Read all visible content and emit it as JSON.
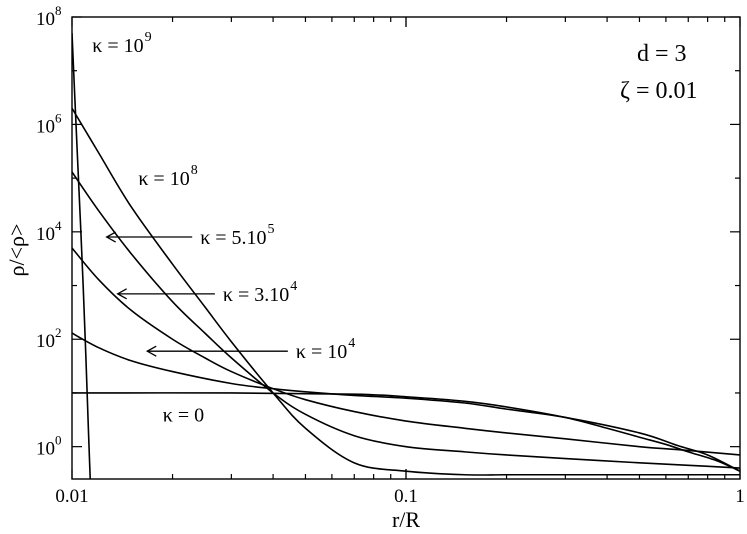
{
  "chart_data": {
    "type": "line",
    "title": "",
    "xlabel": "r/R",
    "ylabel": "ρ/<ρ>",
    "xscale": "log",
    "yscale": "log",
    "xlim": [
      0.01,
      1
    ],
    "ylim": [
      0.25,
      100000000
    ],
    "grid": false,
    "xticks": [
      {
        "value": 0.01,
        "label": "0.01"
      },
      {
        "value": 0.1,
        "label": "0.1"
      },
      {
        "value": 1,
        "label": "1"
      }
    ],
    "yticks": [
      {
        "value": 1,
        "base": "10",
        "exp": "0"
      },
      {
        "value": 100,
        "base": "10",
        "exp": "2"
      },
      {
        "value": 10000,
        "base": "10",
        "exp": "4"
      },
      {
        "value": 1000000,
        "base": "10",
        "exp": "6"
      },
      {
        "value": 100000000,
        "base": "10",
        "exp": "8"
      }
    ],
    "params": [
      {
        "text": "d = 3"
      },
      {
        "text": "ζ = 0.01"
      }
    ],
    "series": [
      {
        "label_base": "κ = 10",
        "label_exp": "9",
        "arrow": false,
        "label_anchor": [
          0.0115,
          30000000
        ],
        "x": [
          0.01,
          0.0102,
          0.0104,
          0.0106,
          0.0108,
          0.011,
          0.0112,
          0.0114
        ],
        "y": [
          50000000,
          3000000,
          200000,
          15000,
          1000,
          50,
          2,
          0.1
        ]
      },
      {
        "label_base": "κ = 10",
        "label_exp": "8",
        "arrow": false,
        "label_anchor": [
          0.0158,
          100000
        ],
        "x": [
          0.01,
          0.012,
          0.015,
          0.02,
          0.025,
          0.03,
          0.04,
          0.05,
          0.07,
          0.1,
          0.15,
          0.2,
          0.3,
          0.5,
          0.7,
          1
        ],
        "y": [
          2000000,
          300000,
          30000,
          2500,
          400,
          90,
          10,
          2.2,
          0.5,
          0.35,
          0.3,
          0.3,
          0.3,
          0.3,
          0.3,
          0.3
        ]
      },
      {
        "label_base": "κ = 5.10",
        "label_exp": "5",
        "arrow": true,
        "label_anchor": [
          0.0242,
          8000
        ],
        "arrow_to": [
          0.0127,
          8000
        ],
        "x": [
          0.01,
          0.012,
          0.015,
          0.02,
          0.025,
          0.03,
          0.04,
          0.05,
          0.07,
          0.1,
          0.15,
          0.2,
          0.3,
          0.5,
          0.7,
          1
        ],
        "y": [
          130000,
          25000,
          4000,
          500,
          130,
          45,
          10,
          4,
          1.6,
          1,
          0.8,
          0.7,
          0.6,
          0.5,
          0.45,
          0.4
        ]
      },
      {
        "label_base": "κ = 3.10",
        "label_exp": "4",
        "arrow": true,
        "label_anchor": [
          0.0283,
          700
        ],
        "arrow_to": [
          0.0137,
          700
        ],
        "x": [
          0.01,
          0.012,
          0.015,
          0.02,
          0.025,
          0.03,
          0.04,
          0.05,
          0.07,
          0.1,
          0.15,
          0.2,
          0.3,
          0.5,
          0.7,
          1
        ],
        "y": [
          5000,
          1300,
          350,
          100,
          45,
          25,
          12,
          7.5,
          4.5,
          3,
          2.2,
          1.8,
          1.4,
          1,
          0.85,
          0.7
        ]
      },
      {
        "label_base": "κ = 10",
        "label_exp": "4",
        "arrow": true,
        "label_anchor": [
          0.0468,
          60
        ],
        "arrow_to": [
          0.0168,
          60
        ],
        "x": [
          0.01,
          0.012,
          0.015,
          0.02,
          0.03,
          0.04,
          0.05,
          0.07,
          0.1,
          0.15,
          0.2,
          0.3,
          0.5,
          0.65,
          0.8,
          1
        ],
        "y": [
          130,
          70,
          40,
          25,
          15,
          12,
          10.5,
          9,
          8,
          6.5,
          5,
          3.5,
          1.8,
          1.05,
          0.7,
          0.35
        ]
      },
      {
        "label_base": "κ = 0",
        "label_exp": "",
        "arrow": false,
        "label_anchor": [
          0.0187,
          4
        ],
        "x": [
          0.01,
          0.03,
          0.07,
          0.1,
          0.15,
          0.2,
          0.3,
          0.4,
          0.5,
          0.6,
          0.7,
          0.85,
          1
        ],
        "y": [
          10,
          10,
          9.5,
          8.5,
          7,
          5.5,
          3.5,
          2.2,
          1.5,
          1.1,
          0.8,
          0.55,
          0.35
        ]
      }
    ]
  }
}
